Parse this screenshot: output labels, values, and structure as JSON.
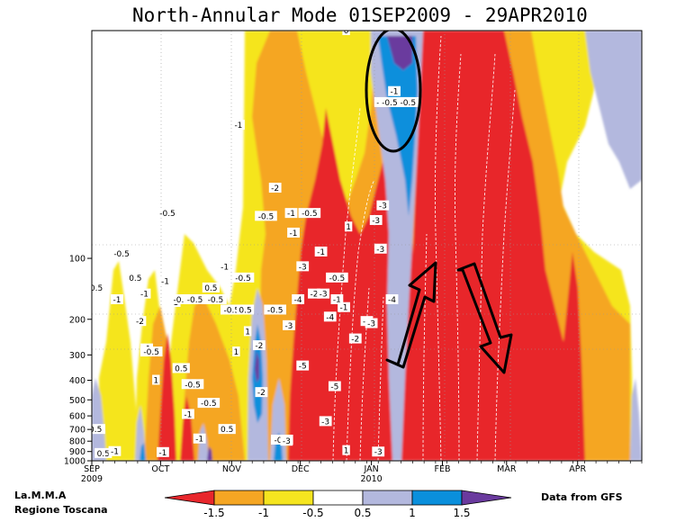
{
  "chart_data": {
    "type": "heatmap",
    "title": "North-Annular Mode 01SEP2009 - 29APR2010",
    "x_ticks": [
      "SEP",
      "OCT",
      "NOV",
      "DEC",
      "JAN",
      "FEB",
      "MAR",
      "APR"
    ],
    "x_year_labels": [
      {
        "month": "SEP",
        "year": "2009"
      },
      {
        "month": "JAN",
        "year": "2010"
      }
    ],
    "x_range": [
      "2009-09-01",
      "2010-04-29"
    ],
    "y_ticks": [
      "100",
      "200",
      "300",
      "400",
      "500",
      "600",
      "700",
      "800",
      "900",
      "1000"
    ],
    "y_scale": "log-pressure",
    "colorbar_labels": [
      "-1.5",
      "-1",
      "-0.5",
      "0.5",
      "1",
      "1.5"
    ],
    "colorbar_colors": [
      "#e8272c",
      "#f5a623",
      "#f5e51f",
      "#ffffff",
      "#b3b8de",
      "#0a8fdc",
      "#6a3a9e"
    ],
    "contour_labels": [
      {
        "date": "2009-09-02",
        "p": 700,
        "text": "-0.5"
      },
      {
        "date": "2009-09-03",
        "p": 140,
        "text": "0.5"
      },
      {
        "date": "2009-09-06",
        "p": 920,
        "text": "0.5"
      },
      {
        "date": "2009-09-11",
        "p": 900,
        "text": "-1"
      },
      {
        "date": "2009-09-12",
        "p": 160,
        "text": "-1"
      },
      {
        "date": "2009-09-14",
        "p": 95,
        "text": "-0.5"
      },
      {
        "date": "2009-09-20",
        "p": 125,
        "text": "0.5"
      },
      {
        "date": "2009-09-22",
        "p": 205,
        "text": "-2"
      },
      {
        "date": "2009-09-24",
        "p": 150,
        "text": "-1"
      },
      {
        "date": "2009-09-25",
        "p": 280,
        "text": "-1"
      },
      {
        "date": "2009-09-27",
        "p": 290,
        "text": "-0.5"
      },
      {
        "date": "2009-09-29",
        "p": 400,
        "text": "1"
      },
      {
        "date": "2009-10-02",
        "p": 910,
        "text": "-1"
      },
      {
        "date": "2009-10-03",
        "p": 130,
        "text": "-1"
      },
      {
        "date": "2009-10-07",
        "p": 165,
        "text": "-1"
      },
      {
        "date": "2009-10-10",
        "p": 160,
        "text": "-0.5"
      },
      {
        "date": "2009-10-04",
        "p": 60,
        "text": "-0.5"
      },
      {
        "date": "2009-10-10",
        "p": 350,
        "text": "0.5"
      },
      {
        "date": "2009-10-13",
        "p": 590,
        "text": "-1"
      },
      {
        "date": "2009-10-15",
        "p": 420,
        "text": "-0.5"
      },
      {
        "date": "2009-10-16",
        "p": 160,
        "text": "-0.5"
      },
      {
        "date": "2009-10-18",
        "p": 780,
        "text": "-1"
      },
      {
        "date": "2009-10-22",
        "p": 520,
        "text": "-0.5"
      },
      {
        "date": "2009-10-23",
        "p": 140,
        "text": "0.5"
      },
      {
        "date": "2009-10-25",
        "p": 160,
        "text": "-0.5"
      },
      {
        "date": "2009-10-29",
        "p": 110,
        "text": "-1"
      },
      {
        "date": "2009-10-30",
        "p": 700,
        "text": "0.5"
      },
      {
        "date": "2009-11-01",
        "p": 180,
        "text": "-0.5"
      },
      {
        "date": "2009-11-03",
        "p": 290,
        "text": "1"
      },
      {
        "date": "2009-11-06",
        "p": 125,
        "text": "-0.5"
      },
      {
        "date": "2009-11-07",
        "p": 180,
        "text": "0.5"
      },
      {
        "date": "2009-11-08",
        "p": 230,
        "text": "1"
      },
      {
        "date": "2009-11-04",
        "p": 22,
        "text": "-1"
      },
      {
        "date": "2009-11-13",
        "p": 270,
        "text": "-2"
      },
      {
        "date": "2009-11-14",
        "p": 460,
        "text": "-2"
      },
      {
        "date": "2009-11-16",
        "p": 62,
        "text": "-0.5"
      },
      {
        "date": "2009-11-20",
        "p": 45,
        "text": "-2"
      },
      {
        "date": "2009-11-20",
        "p": 180,
        "text": "-0.5"
      },
      {
        "date": "2009-11-23",
        "p": 790,
        "text": "-0.5"
      },
      {
        "date": "2009-11-25",
        "p": 800,
        "text": "-3"
      },
      {
        "date": "2009-11-26",
        "p": 215,
        "text": "-3"
      },
      {
        "date": "2009-11-27",
        "p": 60,
        "text": "-1"
      },
      {
        "date": "2009-11-28",
        "p": 75,
        "text": "-1"
      },
      {
        "date": "2009-11-30",
        "p": 160,
        "text": "-4"
      },
      {
        "date": "2009-12-02",
        "p": 110,
        "text": "-3"
      },
      {
        "date": "2009-12-02",
        "p": 340,
        "text": "-5"
      },
      {
        "date": "2009-12-05",
        "p": 60,
        "text": "-0.5"
      },
      {
        "date": "2009-12-07",
        "p": 150,
        "text": "-2"
      },
      {
        "date": "2009-12-10",
        "p": 93,
        "text": "-1"
      },
      {
        "date": "2009-12-11",
        "p": 150,
        "text": "-3"
      },
      {
        "date": "2009-12-12",
        "p": 640,
        "text": "-3"
      },
      {
        "date": "2009-12-14",
        "p": 195,
        "text": "-4"
      },
      {
        "date": "2009-12-16",
        "p": 430,
        "text": "-5"
      },
      {
        "date": "2009-12-17",
        "p": 160,
        "text": "-1"
      },
      {
        "date": "2009-12-17",
        "p": 125,
        "text": "-0.5"
      },
      {
        "date": "2009-12-20",
        "p": 175,
        "text": "-1"
      },
      {
        "date": "2009-12-21",
        "p": 7.5,
        "text": "0"
      },
      {
        "date": "2009-12-21",
        "p": 890,
        "text": "1"
      },
      {
        "date": "2009-12-22",
        "p": 70,
        "text": "1"
      },
      {
        "date": "2009-12-25",
        "p": 250,
        "text": "-2"
      },
      {
        "date": "2009-12-30",
        "p": 205,
        "text": "-4"
      },
      {
        "date": "2010-01-01",
        "p": 210,
        "text": "-3"
      },
      {
        "date": "2010-01-04",
        "p": 905,
        "text": "-3"
      },
      {
        "date": "2010-01-05",
        "p": 90,
        "text": "-3"
      },
      {
        "date": "2010-01-06",
        "p": 55,
        "text": "-3"
      },
      {
        "date": "2010-01-05",
        "p": 17,
        "text": "-3"
      },
      {
        "date": "2010-01-03",
        "p": 65,
        "text": "-3"
      },
      {
        "date": "2010-01-05",
        "p": 17,
        "text": "-3"
      },
      {
        "date": "2010-01-11",
        "p": 15,
        "text": "-1"
      },
      {
        "date": "2010-01-10",
        "p": 160,
        "text": "-4"
      },
      {
        "date": "2010-01-15",
        "p": 17,
        "text": "-0.5"
      },
      {
        "date": "2010-01-15",
        "p": 17,
        "text": "-0.5"
      },
      {
        "date": "2010-01-09",
        "p": 17,
        "text": "-0.5"
      },
      {
        "date": "2010-01-17",
        "p": 17,
        "text": "-0.5"
      },
      {
        "date": "2010-01-15",
        "p": 17,
        "text": "-0.5"
      }
    ]
  }
}
